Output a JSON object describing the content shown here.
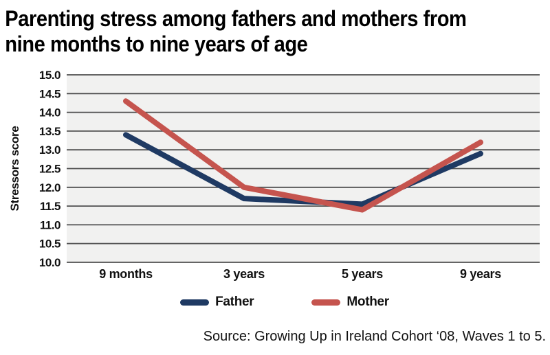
{
  "title": "Parenting stress among fathers and mothers from nine months to nine years of age",
  "title_lines": [
    "Parenting stress among fathers and mothers from",
    "nine months to nine years of age"
  ],
  "source": "Source: Growing Up in Ireland Cohort ‘08, Waves 1 to 5.",
  "legend": [
    {
      "label": "Father",
      "color": "#1f3a63"
    },
    {
      "label": "Mother",
      "color": "#c5544e"
    }
  ],
  "colors": {
    "father": "#1f3a63",
    "mother": "#c5544e",
    "plot_background": "#f1f1f0",
    "gridline": "#4f4f4f",
    "text": "#111111"
  },
  "chart_data": {
    "type": "line",
    "title": "Parenting stress among fathers and mothers from nine months to nine years of age",
    "categories": [
      "9 months",
      "3 years",
      "5 years",
      "9 years"
    ],
    "series": [
      {
        "name": "Father",
        "color": "#1f3a63",
        "values": [
          13.4,
          11.7,
          11.55,
          12.9
        ]
      },
      {
        "name": "Mother",
        "color": "#c5544e",
        "values": [
          14.3,
          12.0,
          11.4,
          13.2
        ]
      }
    ],
    "xlabel": "",
    "ylabel": "Stressors score",
    "ylim": [
      10.0,
      15.0
    ],
    "ytick_step": 0.5,
    "ytick_labels": [
      "10.0",
      "10.5",
      "11.0",
      "11.5",
      "12.0",
      "12.5",
      "13.0",
      "13.5",
      "14.0",
      "14.5",
      "15.0"
    ],
    "grid": true,
    "grid_direction": "horizontal",
    "legend_position": "bottom",
    "plot_bg": "#f1f1f0",
    "grid_color": "#4f4f4f"
  }
}
